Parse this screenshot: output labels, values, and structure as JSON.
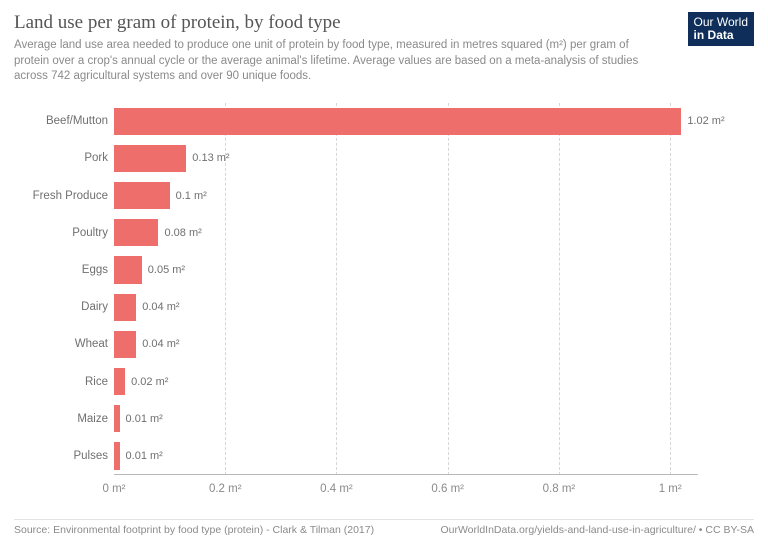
{
  "header": {
    "title": "Land use per gram of protein, by food type",
    "subtitle": "Average land use area needed to produce one unit of protein by food type, measured in metres squared (m²) per gram of protein over a crop's annual cycle or the average animal's lifetime. Average values are based on a meta-analysis of studies across 742 agricultural systems and over 90 unique foods."
  },
  "logo": {
    "line1": "Our World",
    "line2": "in Data"
  },
  "chart": {
    "type": "bar-horizontal",
    "bar_color": "#ed6e6a",
    "grid_color": "#d6d6d6",
    "text_color": "#6f6f6f",
    "background_color": "#ffffff",
    "label_fontsize": 11.5,
    "value_fontsize": 11,
    "xlim": [
      0,
      1.05
    ],
    "ticks": [
      {
        "value": 0,
        "label": "0 m²"
      },
      {
        "value": 0.2,
        "label": "0.2 m²"
      },
      {
        "value": 0.4,
        "label": "0.4 m²"
      },
      {
        "value": 0.6,
        "label": "0.6 m²"
      },
      {
        "value": 0.8,
        "label": "0.8 m²"
      },
      {
        "value": 1.0,
        "label": "1 m²"
      }
    ],
    "categories": [
      {
        "label": "Beef/Mutton",
        "value": 1.02,
        "value_label": "1.02 m²"
      },
      {
        "label": "Pork",
        "value": 0.13,
        "value_label": "0.13 m²"
      },
      {
        "label": "Fresh Produce",
        "value": 0.1,
        "value_label": "0.1 m²"
      },
      {
        "label": "Poultry",
        "value": 0.08,
        "value_label": "0.08 m²"
      },
      {
        "label": "Eggs",
        "value": 0.05,
        "value_label": "0.05 m²"
      },
      {
        "label": "Dairy",
        "value": 0.04,
        "value_label": "0.04 m²"
      },
      {
        "label": "Wheat",
        "value": 0.04,
        "value_label": "0.04 m²"
      },
      {
        "label": "Rice",
        "value": 0.02,
        "value_label": "0.02 m²"
      },
      {
        "label": "Maize",
        "value": 0.01,
        "value_label": "0.01 m²"
      },
      {
        "label": "Pulses",
        "value": 0.01,
        "value_label": "0.01 m²"
      }
    ]
  },
  "footer": {
    "source": "Source: Environmental footprint by food type (protein) - Clark & Tilman (2017)",
    "credit": "OurWorldInData.org/yields-and-land-use-in-agriculture/ • CC BY-SA"
  }
}
